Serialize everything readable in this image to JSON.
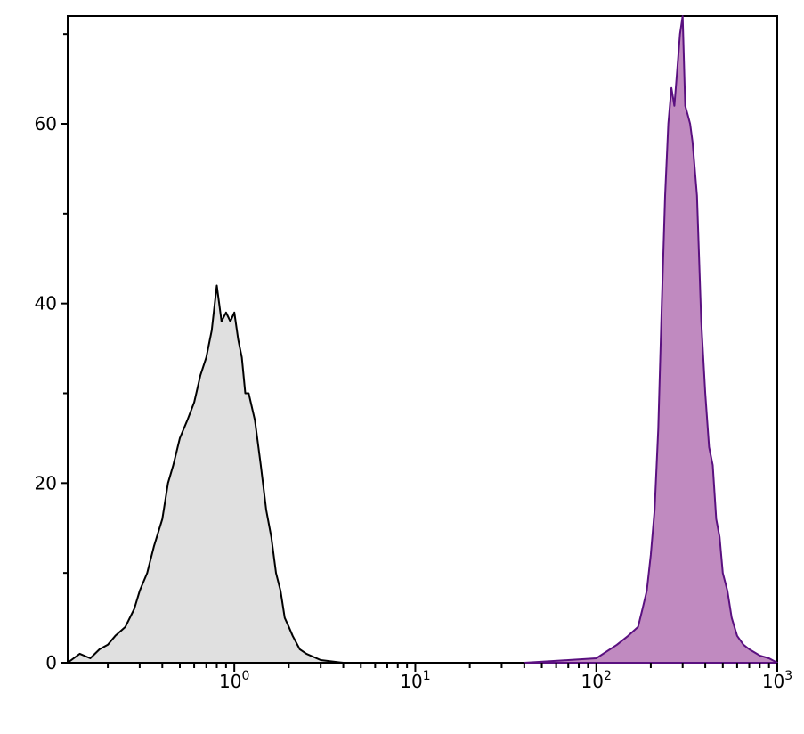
{
  "chart_data": {
    "type": "area",
    "title": "",
    "xlabel": "",
    "ylabel": "",
    "x_scale": "log",
    "xlim": [
      0.12,
      1000
    ],
    "ylim": [
      0,
      72
    ],
    "grid": false,
    "x_ticks": [
      {
        "value": 1,
        "base": "10",
        "exp": "0"
      },
      {
        "value": 10,
        "base": "10",
        "exp": "1"
      },
      {
        "value": 100,
        "base": "10",
        "exp": "2"
      },
      {
        "value": 1000,
        "base": "10",
        "exp": "3"
      }
    ],
    "y_ticks": [
      {
        "value": 0,
        "label": "0"
      },
      {
        "value": 20,
        "label": "20"
      },
      {
        "value": 40,
        "label": "40"
      },
      {
        "value": 60,
        "label": "60"
      }
    ],
    "series": [
      {
        "fill": "#e0e0e0",
        "stroke": "#000000",
        "points": [
          [
            0.12,
            0
          ],
          [
            0.14,
            1
          ],
          [
            0.16,
            0.5
          ],
          [
            0.18,
            1.5
          ],
          [
            0.2,
            2
          ],
          [
            0.22,
            3
          ],
          [
            0.25,
            4
          ],
          [
            0.28,
            6
          ],
          [
            0.3,
            8
          ],
          [
            0.33,
            10
          ],
          [
            0.36,
            13
          ],
          [
            0.4,
            16
          ],
          [
            0.43,
            20
          ],
          [
            0.46,
            22
          ],
          [
            0.5,
            25
          ],
          [
            0.55,
            27
          ],
          [
            0.6,
            29
          ],
          [
            0.65,
            32
          ],
          [
            0.7,
            34
          ],
          [
            0.75,
            37
          ],
          [
            0.8,
            42
          ],
          [
            0.85,
            38
          ],
          [
            0.9,
            39
          ],
          [
            0.95,
            38
          ],
          [
            1.0,
            39
          ],
          [
            1.05,
            36
          ],
          [
            1.1,
            34
          ],
          [
            1.15,
            30
          ],
          [
            1.2,
            30
          ],
          [
            1.3,
            27
          ],
          [
            1.4,
            22
          ],
          [
            1.5,
            17
          ],
          [
            1.6,
            14
          ],
          [
            1.7,
            10
          ],
          [
            1.8,
            8
          ],
          [
            1.9,
            5
          ],
          [
            2.0,
            4
          ],
          [
            2.1,
            3
          ],
          [
            2.3,
            1.5
          ],
          [
            2.5,
            1
          ],
          [
            3.0,
            0.3
          ],
          [
            4.0,
            0
          ]
        ]
      },
      {
        "fill": "#c08ac0",
        "stroke": "#5a1080",
        "points": [
          [
            40,
            0
          ],
          [
            70,
            0.3
          ],
          [
            100,
            0.5
          ],
          [
            130,
            2
          ],
          [
            150,
            3
          ],
          [
            170,
            4
          ],
          [
            180,
            6
          ],
          [
            190,
            8
          ],
          [
            200,
            12
          ],
          [
            210,
            17
          ],
          [
            220,
            26
          ],
          [
            230,
            40
          ],
          [
            240,
            52
          ],
          [
            250,
            60
          ],
          [
            260,
            64
          ],
          [
            270,
            62
          ],
          [
            280,
            66
          ],
          [
            290,
            70
          ],
          [
            300,
            72
          ],
          [
            310,
            62
          ],
          [
            320,
            61
          ],
          [
            330,
            60
          ],
          [
            340,
            58
          ],
          [
            350,
            55
          ],
          [
            360,
            52
          ],
          [
            380,
            38
          ],
          [
            400,
            30
          ],
          [
            420,
            24
          ],
          [
            440,
            22
          ],
          [
            460,
            16
          ],
          [
            480,
            14
          ],
          [
            500,
            10
          ],
          [
            530,
            8
          ],
          [
            560,
            5
          ],
          [
            600,
            3
          ],
          [
            650,
            2
          ],
          [
            700,
            1.5
          ],
          [
            800,
            0.8
          ],
          [
            900,
            0.5
          ],
          [
            1000,
            0
          ]
        ]
      }
    ]
  }
}
